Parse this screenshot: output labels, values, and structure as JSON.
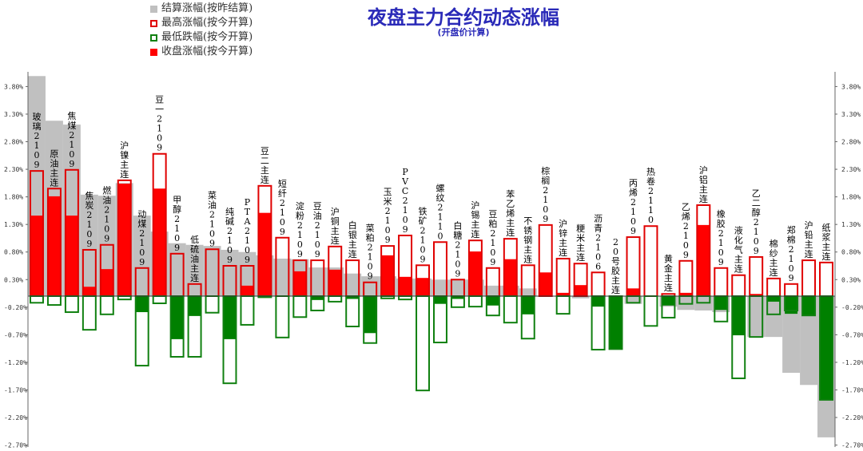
{
  "header": {
    "title": "夜盘主力合约动态涨幅",
    "subtitle": "(开盘价计算)"
  },
  "legend": [
    {
      "label": "结算涨幅(按昨结算)",
      "style": "fill",
      "color": "#c0c0c0"
    },
    {
      "label": "最高涨幅(按今开算)",
      "style": "outline",
      "color": "#e00000"
    },
    {
      "label": "最低跌幅(按今开算)",
      "style": "outline",
      "color": "#108010"
    },
    {
      "label": "收盘涨幅(按今开算)",
      "style": "fill",
      "color": "#ff0000"
    }
  ],
  "colors": {
    "settle": "#c0c0c0",
    "high": "#e00000",
    "low": "#108010",
    "close_up": "#ff0000",
    "close_down": "#008000",
    "title": "#2a2ab8"
  },
  "chart_data": {
    "type": "bar",
    "title": "夜盘主力合约动态涨幅",
    "subtitle": "(开盘价计算)",
    "xlabel": "",
    "ylabel": "",
    "ylim": [
      -2.7,
      4.1
    ],
    "yticks": [
      "3.80%",
      "3.30%",
      "2.80%",
      "2.30%",
      "1.80%",
      "1.30%",
      "0.80%",
      "0.30%",
      "-0.20%",
      "-0.70%",
      "-1.20%",
      "-1.70%",
      "-2.20%",
      "-2.70%"
    ],
    "ytick_values": [
      3.8,
      3.3,
      2.8,
      2.3,
      1.8,
      1.3,
      0.8,
      0.3,
      -0.2,
      -0.7,
      -1.2,
      -1.7,
      -2.2,
      -2.7
    ],
    "grid": false,
    "legend_position": "top-left",
    "categories": [
      "玻璃2109",
      "原油主连",
      "焦煤2109",
      "焦炭2109",
      "燃油2109",
      "沪镍主连",
      "动煤2109",
      "豆一2109",
      "甲醇2109",
      "低硫油主连",
      "菜油2109",
      "纯碱2109",
      "PTA2109",
      "豆二主连",
      "短纤2109",
      "淀粉2109",
      "豆油2109",
      "沪铜主连",
      "白银主连",
      "菜粕2109",
      "玉米2109",
      "PVC2109",
      "铁矿2109",
      "螺纹2110",
      "白糖2109",
      "沪锡主连",
      "豆粕2109",
      "苯乙烯主连",
      "不锈钢主连",
      "棕榈2109",
      "沪锌主连",
      "粳米主连",
      "沥青2106",
      "20号胶主连",
      "丙烯2109",
      "热卷2110",
      "黄金主连",
      "乙烯2109",
      "沪铝主连",
      "橡胶2109",
      "液化气主连",
      "乙二醇2109",
      "棉纱主连",
      "郑棉2109",
      "沪铅主连",
      "纸浆主连"
    ],
    "series": [
      {
        "name": "结算涨幅(按昨结算)",
        "values": [
          3.99,
          3.18,
          3.11,
          1.84,
          1.82,
          2.05,
          1.46,
          1.17,
          0.96,
          0.93,
          0.91,
          0.84,
          0.8,
          0.74,
          0.68,
          0.67,
          0.52,
          0.52,
          0.41,
          0.36,
          0.36,
          0.32,
          0.32,
          0.3,
          0.3,
          0.3,
          0.19,
          0.19,
          0.14,
          0.0,
          0.0,
          -0.04,
          0.0,
          0.0,
          -0.14,
          0.0,
          -0.19,
          -0.25,
          -0.26,
          -0.29,
          0.0,
          -0.74,
          -0.74,
          -1.39,
          -1.61,
          -2.56
        ]
      },
      {
        "name": "最高涨幅(按今开算)",
        "values": [
          2.27,
          1.95,
          2.29,
          0.84,
          0.93,
          2.1,
          0.51,
          2.58,
          0.77,
          0.22,
          0.85,
          0.55,
          0.55,
          2.0,
          1.06,
          0.65,
          0.65,
          0.9,
          0.65,
          0.25,
          0.91,
          1.1,
          0.56,
          0.98,
          0.3,
          1.01,
          0.51,
          1.04,
          0.56,
          1.29,
          0.68,
          0.59,
          0.43,
          0.0,
          1.07,
          1.27,
          0.04,
          0.64,
          1.65,
          0.51,
          0.38,
          0.71,
          0.32,
          0.22,
          0.65,
          0.61
        ]
      },
      {
        "name": "最低跌幅(按今开算)",
        "values": [
          -0.12,
          -0.16,
          -0.29,
          -0.61,
          -0.33,
          -0.06,
          -1.26,
          -0.13,
          -1.1,
          -1.1,
          -0.3,
          -1.58,
          -0.52,
          -0.02,
          -0.75,
          -0.38,
          -0.26,
          -0.1,
          -0.55,
          -0.85,
          -0.04,
          -0.06,
          -1.71,
          -0.84,
          -0.2,
          -0.19,
          -0.35,
          -0.48,
          -0.77,
          0.0,
          -0.32,
          0.0,
          -0.97,
          -0.96,
          -0.12,
          -0.54,
          -0.39,
          -0.14,
          -0.12,
          -0.46,
          -1.49,
          -0.74,
          -0.33,
          -0.26,
          -0.35,
          -1.88
        ]
      },
      {
        "name": "收盘涨幅(按今开算)",
        "values": [
          1.46,
          1.81,
          1.46,
          0.17,
          0.49,
          2.04,
          -0.29,
          1.95,
          -0.78,
          -0.36,
          0.0,
          -0.78,
          0.19,
          1.51,
          0.0,
          0.45,
          -0.07,
          0.48,
          -0.05,
          -0.67,
          0.74,
          0.35,
          0.33,
          -0.14,
          -0.05,
          0.81,
          -0.17,
          0.67,
          -0.33,
          0.43,
          0.06,
          0.2,
          -0.19,
          -0.96,
          0.14,
          0.0,
          -0.17,
          0.06,
          1.29,
          -0.25,
          -0.71,
          0.04,
          -0.1,
          -0.32,
          -0.35,
          -1.88
        ]
      }
    ]
  }
}
